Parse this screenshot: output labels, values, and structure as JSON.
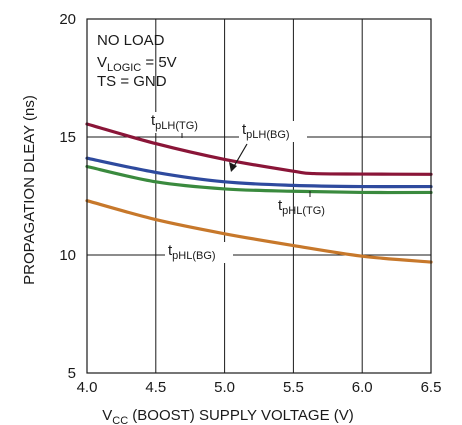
{
  "chart_data": {
    "type": "line",
    "title": "",
    "xlabel": {
      "main": "V",
      "sub": "CC",
      "rest": " (BOOST) SUPPLY VOLTAGE (V)"
    },
    "ylabel": "PROPAGATION DLEAY (ns)",
    "xlim": [
      4.0,
      6.5
    ],
    "ylim": [
      5,
      20
    ],
    "x_ticks": [
      "4.0",
      "4.5",
      "5.0",
      "5.5",
      "6.0",
      "6.5"
    ],
    "y_ticks": [
      "5",
      "10",
      "15",
      "20"
    ],
    "grid": true,
    "conditions": {
      "line1": "NO LOAD",
      "line2_main": "V",
      "line2_sub": "LOGIC",
      "line2_rest": " = 5V",
      "line3": "TS = GND"
    },
    "series": [
      {
        "name": "tpLH(TG)",
        "label_main": "t",
        "label_sub": "pLH(TG)",
        "color": "#8a1538",
        "x": [
          4.0,
          4.5,
          5.0,
          5.5,
          5.65,
          6.0,
          6.5
        ],
        "y": [
          15.55,
          14.72,
          14.05,
          13.55,
          13.45,
          13.43,
          13.42
        ]
      },
      {
        "name": "tpLH(BG)",
        "label_main": "t",
        "label_sub": "pLH(BG)",
        "color": "#2e4a9e",
        "x": [
          4.0,
          4.5,
          5.0,
          5.5,
          6.0,
          6.5
        ],
        "y": [
          14.1,
          13.5,
          13.1,
          12.95,
          12.9,
          12.9
        ]
      },
      {
        "name": "tpHL(TG)",
        "label_main": "t",
        "label_sub": "pHL(TG)",
        "color": "#3a8a3e",
        "x": [
          4.0,
          4.5,
          5.0,
          5.5,
          6.0,
          6.5
        ],
        "y": [
          13.75,
          13.1,
          12.8,
          12.7,
          12.65,
          12.65
        ]
      },
      {
        "name": "tpHL(BG)",
        "label_main": "t",
        "label_sub": "pHL(BG)",
        "color": "#c7782b",
        "x": [
          4.0,
          4.5,
          5.0,
          5.5,
          6.0,
          6.5
        ],
        "y": [
          12.3,
          11.5,
          10.9,
          10.4,
          9.95,
          9.7
        ]
      }
    ]
  }
}
